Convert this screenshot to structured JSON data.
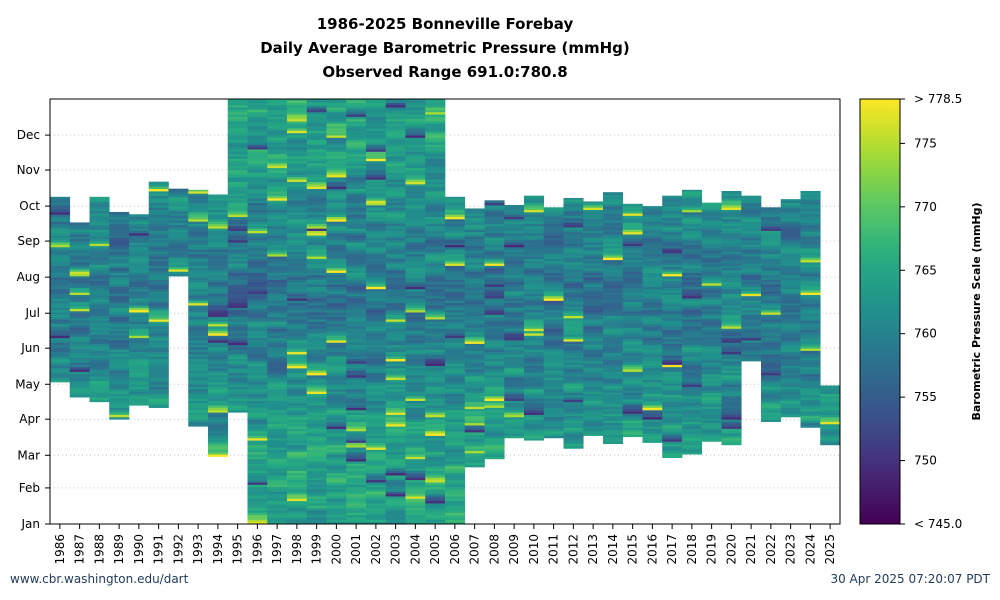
{
  "chart_data": {
    "type": "heatmap",
    "title": "1986-2025 Bonneville Forebay",
    "subtitle": "Daily Average Barometric Pressure (mmHg)",
    "range_text": "Observed Range 691.0:780.8",
    "x": [
      "1986",
      "1987",
      "1988",
      "1989",
      "1990",
      "1991",
      "1992",
      "1993",
      "1994",
      "1995",
      "1996",
      "1997",
      "1998",
      "1999",
      "2000",
      "2001",
      "2002",
      "2003",
      "2004",
      "2005",
      "2006",
      "2007",
      "2008",
      "2009",
      "2010",
      "2011",
      "2012",
      "2013",
      "2014",
      "2015",
      "2016",
      "2017",
      "2018",
      "2019",
      "2020",
      "2021",
      "2022",
      "2023",
      "2024",
      "2025"
    ],
    "y_ticks": [
      "Jan",
      "Feb",
      "Mar",
      "Apr",
      "May",
      "Jun",
      "Jul",
      "Aug",
      "Sep",
      "Oct",
      "Nov",
      "Dec"
    ],
    "y_tick_days": [
      1,
      32,
      60,
      91,
      121,
      152,
      182,
      213,
      244,
      274,
      305,
      335
    ],
    "ylim": [
      1,
      366
    ],
    "coverage": [
      {
        "year": "1986",
        "start_day": 123,
        "end_day": 282
      },
      {
        "year": "1987",
        "start_day": 110,
        "end_day": 260
      },
      {
        "year": "1988",
        "start_day": 106,
        "end_day": 282
      },
      {
        "year": "1989",
        "start_day": 91,
        "end_day": 269
      },
      {
        "year": "1990",
        "start_day": 103,
        "end_day": 267
      },
      {
        "year": "1991",
        "start_day": 101,
        "end_day": 295
      },
      {
        "year": "1992",
        "start_day": 214,
        "end_day": 289
      },
      {
        "year": "1993",
        "start_day": 85,
        "end_day": 288
      },
      {
        "year": "1994",
        "start_day": 59,
        "end_day": 284
      },
      {
        "year": "1995",
        "start_day": 97,
        "end_day": 366
      },
      {
        "year": "1996",
        "start_day": 1,
        "end_day": 366
      },
      {
        "year": "1997",
        "start_day": 1,
        "end_day": 366
      },
      {
        "year": "1998",
        "start_day": 1,
        "end_day": 366
      },
      {
        "year": "1999",
        "start_day": 1,
        "end_day": 366
      },
      {
        "year": "2000",
        "start_day": 1,
        "end_day": 366
      },
      {
        "year": "2001",
        "start_day": 1,
        "end_day": 366
      },
      {
        "year": "2002",
        "start_day": 1,
        "end_day": 366
      },
      {
        "year": "2003",
        "start_day": 1,
        "end_day": 366
      },
      {
        "year": "2004",
        "start_day": 1,
        "end_day": 366
      },
      {
        "year": "2005",
        "start_day": 1,
        "end_day": 366
      },
      {
        "year": "2006",
        "start_day": 1,
        "end_day": 282
      },
      {
        "year": "2007",
        "start_day": 50,
        "end_day": 272
      },
      {
        "year": "2008",
        "start_day": 57,
        "end_day": 279
      },
      {
        "year": "2009",
        "start_day": 75,
        "end_day": 275
      },
      {
        "year": "2010",
        "start_day": 73,
        "end_day": 283
      },
      {
        "year": "2011",
        "start_day": 75,
        "end_day": 273
      },
      {
        "year": "2012",
        "start_day": 66,
        "end_day": 281
      },
      {
        "year": "2013",
        "start_day": 77,
        "end_day": 278
      },
      {
        "year": "2014",
        "start_day": 70,
        "end_day": 286
      },
      {
        "year": "2015",
        "start_day": 76,
        "end_day": 276
      },
      {
        "year": "2016",
        "start_day": 71,
        "end_day": 274
      },
      {
        "year": "2017",
        "start_day": 58,
        "end_day": 283
      },
      {
        "year": "2018",
        "start_day": 61,
        "end_day": 288
      },
      {
        "year": "2019",
        "start_day": 72,
        "end_day": 277
      },
      {
        "year": "2020",
        "start_day": 69,
        "end_day": 287
      },
      {
        "year": "2021",
        "start_day": 141,
        "end_day": 283
      },
      {
        "year": "2022",
        "start_day": 89,
        "end_day": 273
      },
      {
        "year": "2023",
        "start_day": 93,
        "end_day": 280
      },
      {
        "year": "2024",
        "start_day": 84,
        "end_day": 287
      },
      {
        "year": "2025",
        "start_day": 69,
        "end_day": 120
      }
    ],
    "colorbar": {
      "label": "Barometric Pressure Scale (mmHg)",
      "min": 745.0,
      "max": 778.5,
      "ticks": [
        750,
        755,
        760,
        765,
        770,
        775
      ],
      "min_label": "< 745.0",
      "max_label": "> 778.5",
      "colormap": "viridis"
    },
    "grid": "horizontal dotted",
    "legend": "colorbar right"
  },
  "footer": {
    "left": "www.cbr.washington.edu/dart",
    "right": "30 Apr 2025 07:20:07 PDT"
  },
  "colors": {
    "footer_text": "#1f3a5a",
    "viridis_low": "#440154",
    "viridis_mid": "#21918c",
    "viridis_high": "#fde725"
  }
}
